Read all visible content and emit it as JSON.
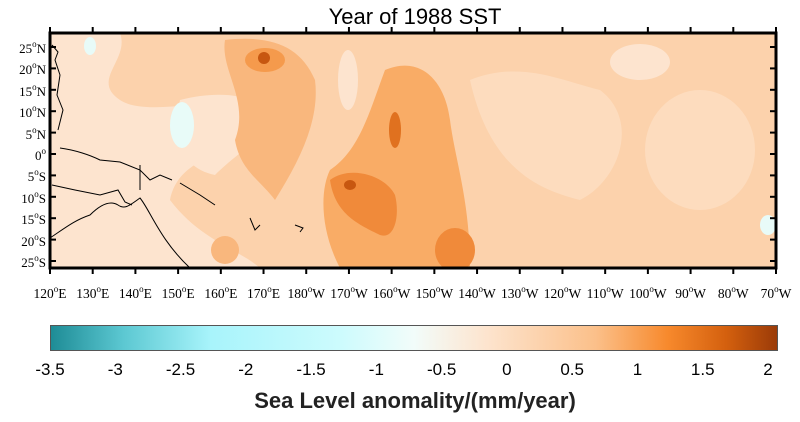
{
  "title": "Year of 1988 SST",
  "map": {
    "lat_ticks": [
      "25",
      "20",
      "15",
      "10",
      "5",
      "0",
      "5",
      "10",
      "15",
      "20",
      "25"
    ],
    "lat_suffix": [
      "N",
      "N",
      "N",
      "N",
      "N",
      "",
      "S",
      "S",
      "S",
      "S",
      "S"
    ],
    "lon_ticks": [
      "120",
      "130",
      "140",
      "150",
      "160",
      "170",
      "180",
      "170",
      "160",
      "150",
      "140",
      "130",
      "120",
      "110",
      "100",
      "90",
      "80",
      "70"
    ],
    "lon_suffix": [
      "E",
      "E",
      "E",
      "E",
      "E",
      "E",
      "W",
      "W",
      "W",
      "W",
      "W",
      "W",
      "W",
      "W",
      "W",
      "W",
      "W",
      "W"
    ],
    "degree_symbol": "o",
    "colors": {
      "positive_light": "#fde4ce",
      "positive_mid": "#fbc690",
      "positive_strong": "#f7a055",
      "positive_max": "#d4600e",
      "negative_light": "#e8fbf8"
    }
  },
  "colorbar": {
    "ticks": [
      "-3.5",
      "-3",
      "-2.5",
      "-2",
      "-1.5",
      "-1",
      "-0.5",
      "0",
      "0.5",
      "1",
      "1.5",
      "2"
    ],
    "label": "Sea Level anomality/(mm/year)",
    "range": [
      -3.5,
      2
    ]
  }
}
